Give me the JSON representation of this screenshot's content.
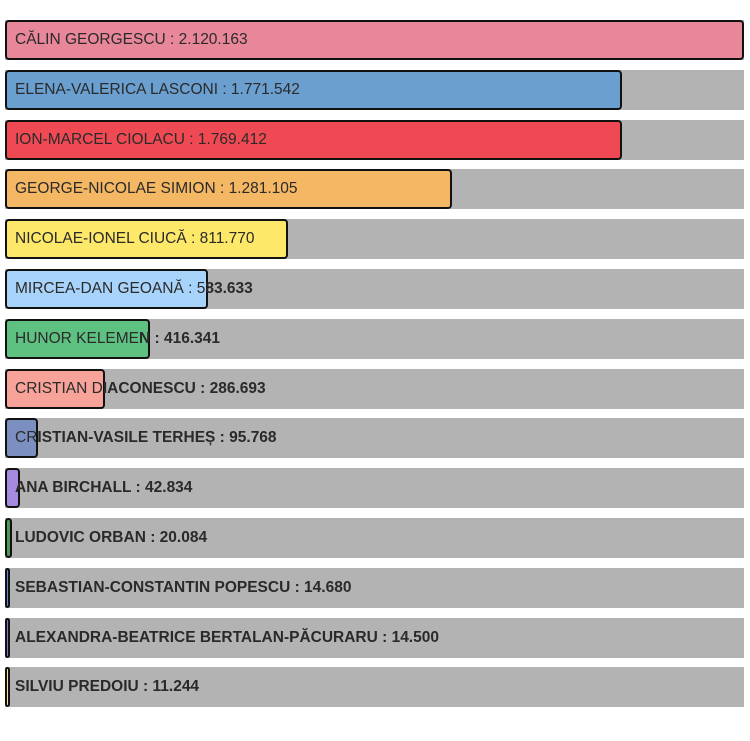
{
  "chart_data": {
    "type": "bar",
    "orientation": "horizontal",
    "max_value": 2120163,
    "bars": [
      {
        "name": "CĂLIN GEORGESCU",
        "value": 2120163,
        "value_text": "2.120.163",
        "color": "#e8869a"
      },
      {
        "name": "ELENA-VALERICA LASCONI",
        "value": 1771542,
        "value_text": "1.771.542",
        "color": "#6a9fd0"
      },
      {
        "name": "ION-MARCEL CIOLACU",
        "value": 1769412,
        "value_text": "1.769.412",
        "color": "#ef4a53"
      },
      {
        "name": "GEORGE-NICOLAE SIMION",
        "value": 1281105,
        "value_text": "1.281.105",
        "color": "#f4b764"
      },
      {
        "name": "NICOLAE-IONEL CIUCĂ",
        "value": 811770,
        "value_text": "811.770",
        "color": "#fde86a"
      },
      {
        "name": "MIRCEA-DAN GEOANĂ",
        "value": 583633,
        "value_text": "583.633",
        "color": "#a8d4fb"
      },
      {
        "name": "HUNOR KELEMEN",
        "value": 416341,
        "value_text": "416.341",
        "color": "#5ec181"
      },
      {
        "name": "CRISTIAN DIACONESCU",
        "value": 286693,
        "value_text": "286.693",
        "color": "#f7a39a"
      },
      {
        "name": "CRISTIAN-VASILE TERHEȘ",
        "value": 95768,
        "value_text": "95.768",
        "color": "#7b8fc0"
      },
      {
        "name": "ANA BIRCHALL",
        "value": 42834,
        "value_text": "42.834",
        "color": "#a58be0"
      },
      {
        "name": "LUDOVIC ORBAN",
        "value": 20084,
        "value_text": "20.084",
        "color": "#4c9a5a"
      },
      {
        "name": "SEBASTIAN-CONSTANTIN POPESCU",
        "value": 14680,
        "value_text": "14.680",
        "color": "#5b8bd0"
      },
      {
        "name": "ALEXANDRA-BEATRICE BERTALAN-PĂCURARU",
        "value": 14500,
        "value_text": "14.500",
        "color": "#7b78c8"
      },
      {
        "name": "SILVIU PREDOIU",
        "value": 11244,
        "value_text": "11.244",
        "color": "#f3e98a"
      }
    ]
  }
}
